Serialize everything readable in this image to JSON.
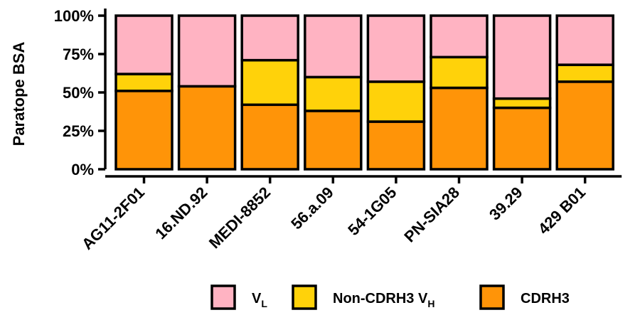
{
  "chart_data": {
    "type": "bar",
    "stacked": true,
    "categories": [
      "AG11-2F01",
      "16.ND.92",
      "MEDI-8852",
      "56.a.09",
      "54-1G05",
      "PN-SIA28",
      "39.29",
      "429 B01"
    ],
    "series": [
      {
        "name": "CDRH3",
        "color": "#FF9408",
        "values": [
          51,
          54,
          42,
          38,
          31,
          53,
          40,
          57
        ]
      },
      {
        "name": "Non-CDRH3 V",
        "name_sub": "H",
        "color": "#FFD20A",
        "values": [
          11,
          0,
          29,
          22,
          26,
          20,
          6,
          11
        ]
      },
      {
        "name": "V",
        "name_sub": "L",
        "color": "#FFB3C2",
        "values": [
          38,
          46,
          29,
          40,
          43,
          27,
          54,
          32
        ]
      }
    ],
    "legend_order": [
      2,
      1,
      0
    ],
    "ylabel": "Paratope BSA",
    "yticks": [
      "0%",
      "25%",
      "50%",
      "75%",
      "100%"
    ],
    "ytick_values": [
      0,
      25,
      50,
      75,
      100
    ],
    "ylim": [
      0,
      100
    ],
    "legend_position": "bottom",
    "grid": false
  }
}
